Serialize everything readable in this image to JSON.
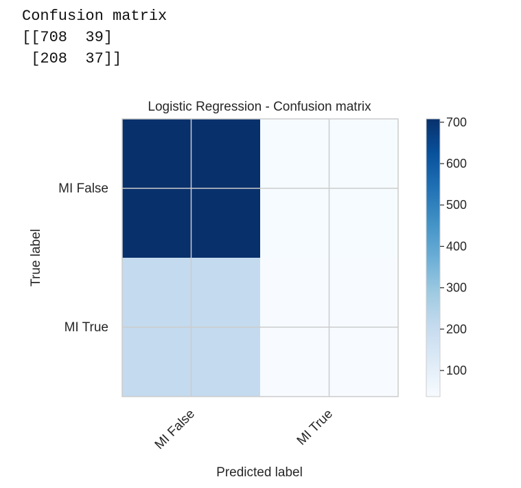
{
  "output": {
    "heading": "Confusion matrix",
    "row1": "[[708  39]",
    "row2": " [208  37]]"
  },
  "chart_data": {
    "type": "heatmap",
    "title": "Logistic Regression - Confusion matrix",
    "xlabel": "Predicted label",
    "ylabel": "True label",
    "x_categories": [
      "MI False",
      "MI True"
    ],
    "y_categories": [
      "MI False",
      "MI True"
    ],
    "values": [
      [
        708,
        39
      ],
      [
        208,
        37
      ]
    ],
    "colormap": "Blues",
    "color_low": "#f7fbff",
    "color_high": "#08306b",
    "colorbar_ticks": [
      100,
      200,
      300,
      400,
      500,
      600,
      700
    ],
    "colorbar_range": [
      37,
      708
    ],
    "grid": true
  }
}
